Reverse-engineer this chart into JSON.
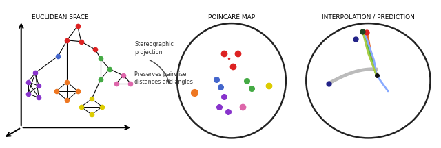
{
  "title1": "Euclidean Space",
  "title2": "Poincaré Map",
  "title3": "Interpolation / Prediction",
  "annotation1": "Stereographic\nprojection",
  "annotation2": "Preserves pairwise\ndistances and angles",
  "bg_color": "#ffffff",
  "colors": {
    "red": "#dd2222",
    "blue": "#4466cc",
    "green": "#44aa44",
    "orange": "#ee7722",
    "yellow": "#ddcc00",
    "purple": "#8833cc",
    "pink": "#dd66aa",
    "dark_green": "#336633",
    "navy": "#222288",
    "black": "#111111"
  }
}
